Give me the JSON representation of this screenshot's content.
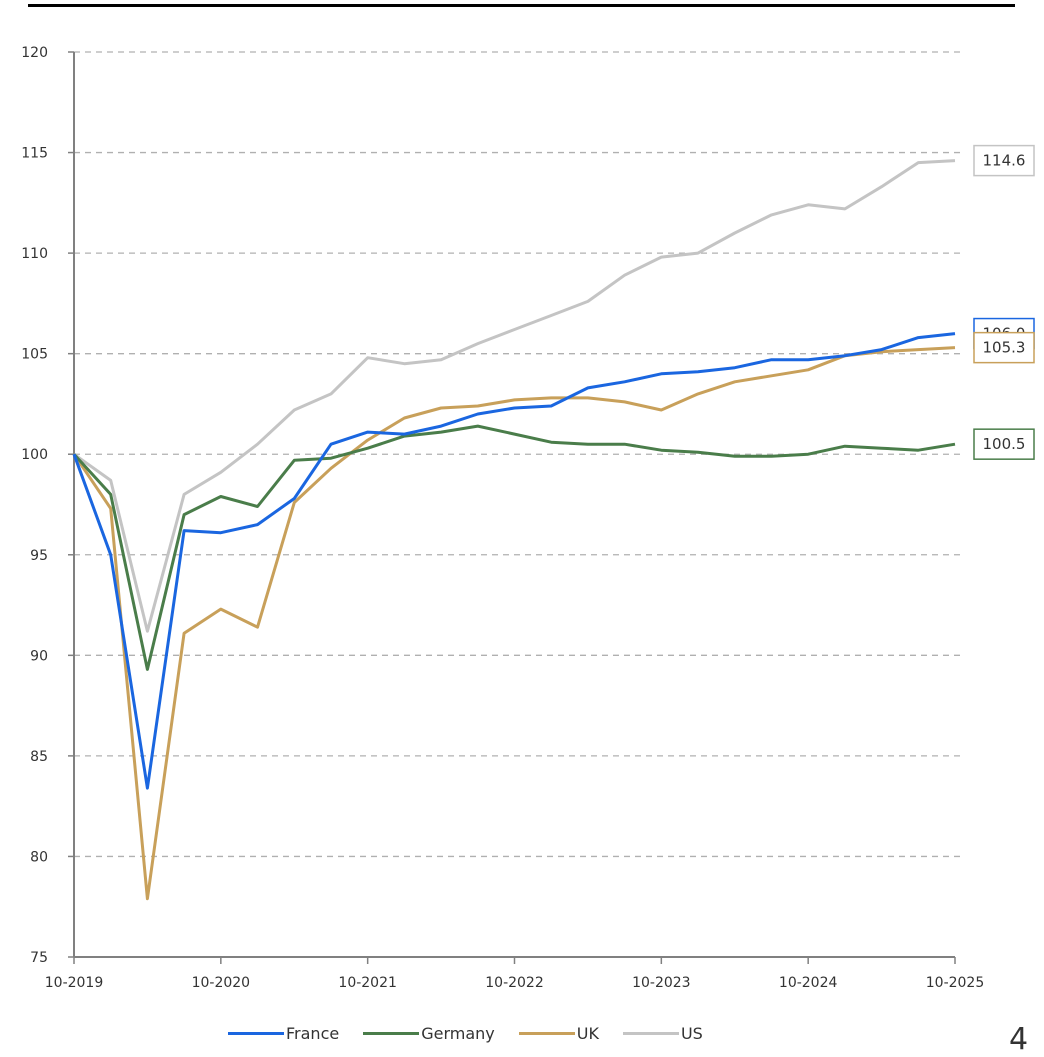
{
  "page_number": "4",
  "colors": {
    "France": "#1a66e0",
    "Germany": "#4a7d4a",
    "UK": "#c8a05a",
    "US": "#c4c4c4"
  },
  "chart_data": {
    "type": "line",
    "title": "",
    "xlabel": "",
    "ylabel": "",
    "x_tick_labels": [
      "10-2019",
      "10-2020",
      "10-2021",
      "10-2022",
      "10-2023",
      "10-2024",
      "10-2025"
    ],
    "ylim": [
      75,
      120
    ],
    "y_ticks": [
      75,
      80,
      85,
      90,
      95,
      100,
      105,
      110,
      115,
      120
    ],
    "grid": "horizontal dashed",
    "legend_position": "bottom",
    "series": [
      {
        "name": "France",
        "color": "#1a66e0",
        "end_label": "106.0",
        "values": [
          100.0,
          95.0,
          83.4,
          96.2,
          96.1,
          96.5,
          97.8,
          100.5,
          101.1,
          101.0,
          101.4,
          102.0,
          102.3,
          102.4,
          103.3,
          103.6,
          104.0,
          104.1,
          104.3,
          104.7,
          104.7,
          104.9,
          105.2,
          105.8,
          106.0
        ]
      },
      {
        "name": "Germany",
        "color": "#4a7d4a",
        "end_label": "100.5",
        "values": [
          100.0,
          98.0,
          89.3,
          97.0,
          97.9,
          97.4,
          99.7,
          99.8,
          100.3,
          100.9,
          101.1,
          101.4,
          101.0,
          100.6,
          100.5,
          100.5,
          100.2,
          100.1,
          99.9,
          99.9,
          100.0,
          100.4,
          100.3,
          100.2,
          100.5
        ]
      },
      {
        "name": "UK",
        "color": "#c8a05a",
        "end_label": "105.3",
        "values": [
          100.0,
          97.3,
          77.9,
          91.1,
          92.3,
          91.4,
          97.6,
          99.3,
          100.7,
          101.8,
          102.3,
          102.4,
          102.7,
          102.8,
          102.8,
          102.6,
          102.2,
          103.0,
          103.6,
          103.9,
          104.2,
          104.9,
          105.1,
          105.2,
          105.3
        ]
      },
      {
        "name": "US",
        "color": "#c4c4c4",
        "end_label": "114.6",
        "values": [
          100.0,
          98.7,
          91.2,
          98.0,
          99.1,
          100.5,
          102.2,
          103.0,
          104.8,
          104.5,
          104.7,
          105.5,
          106.2,
          106.9,
          107.6,
          108.9,
          109.8,
          110.0,
          111.0,
          111.9,
          112.4,
          112.2,
          113.3,
          114.5,
          114.6
        ]
      }
    ]
  }
}
